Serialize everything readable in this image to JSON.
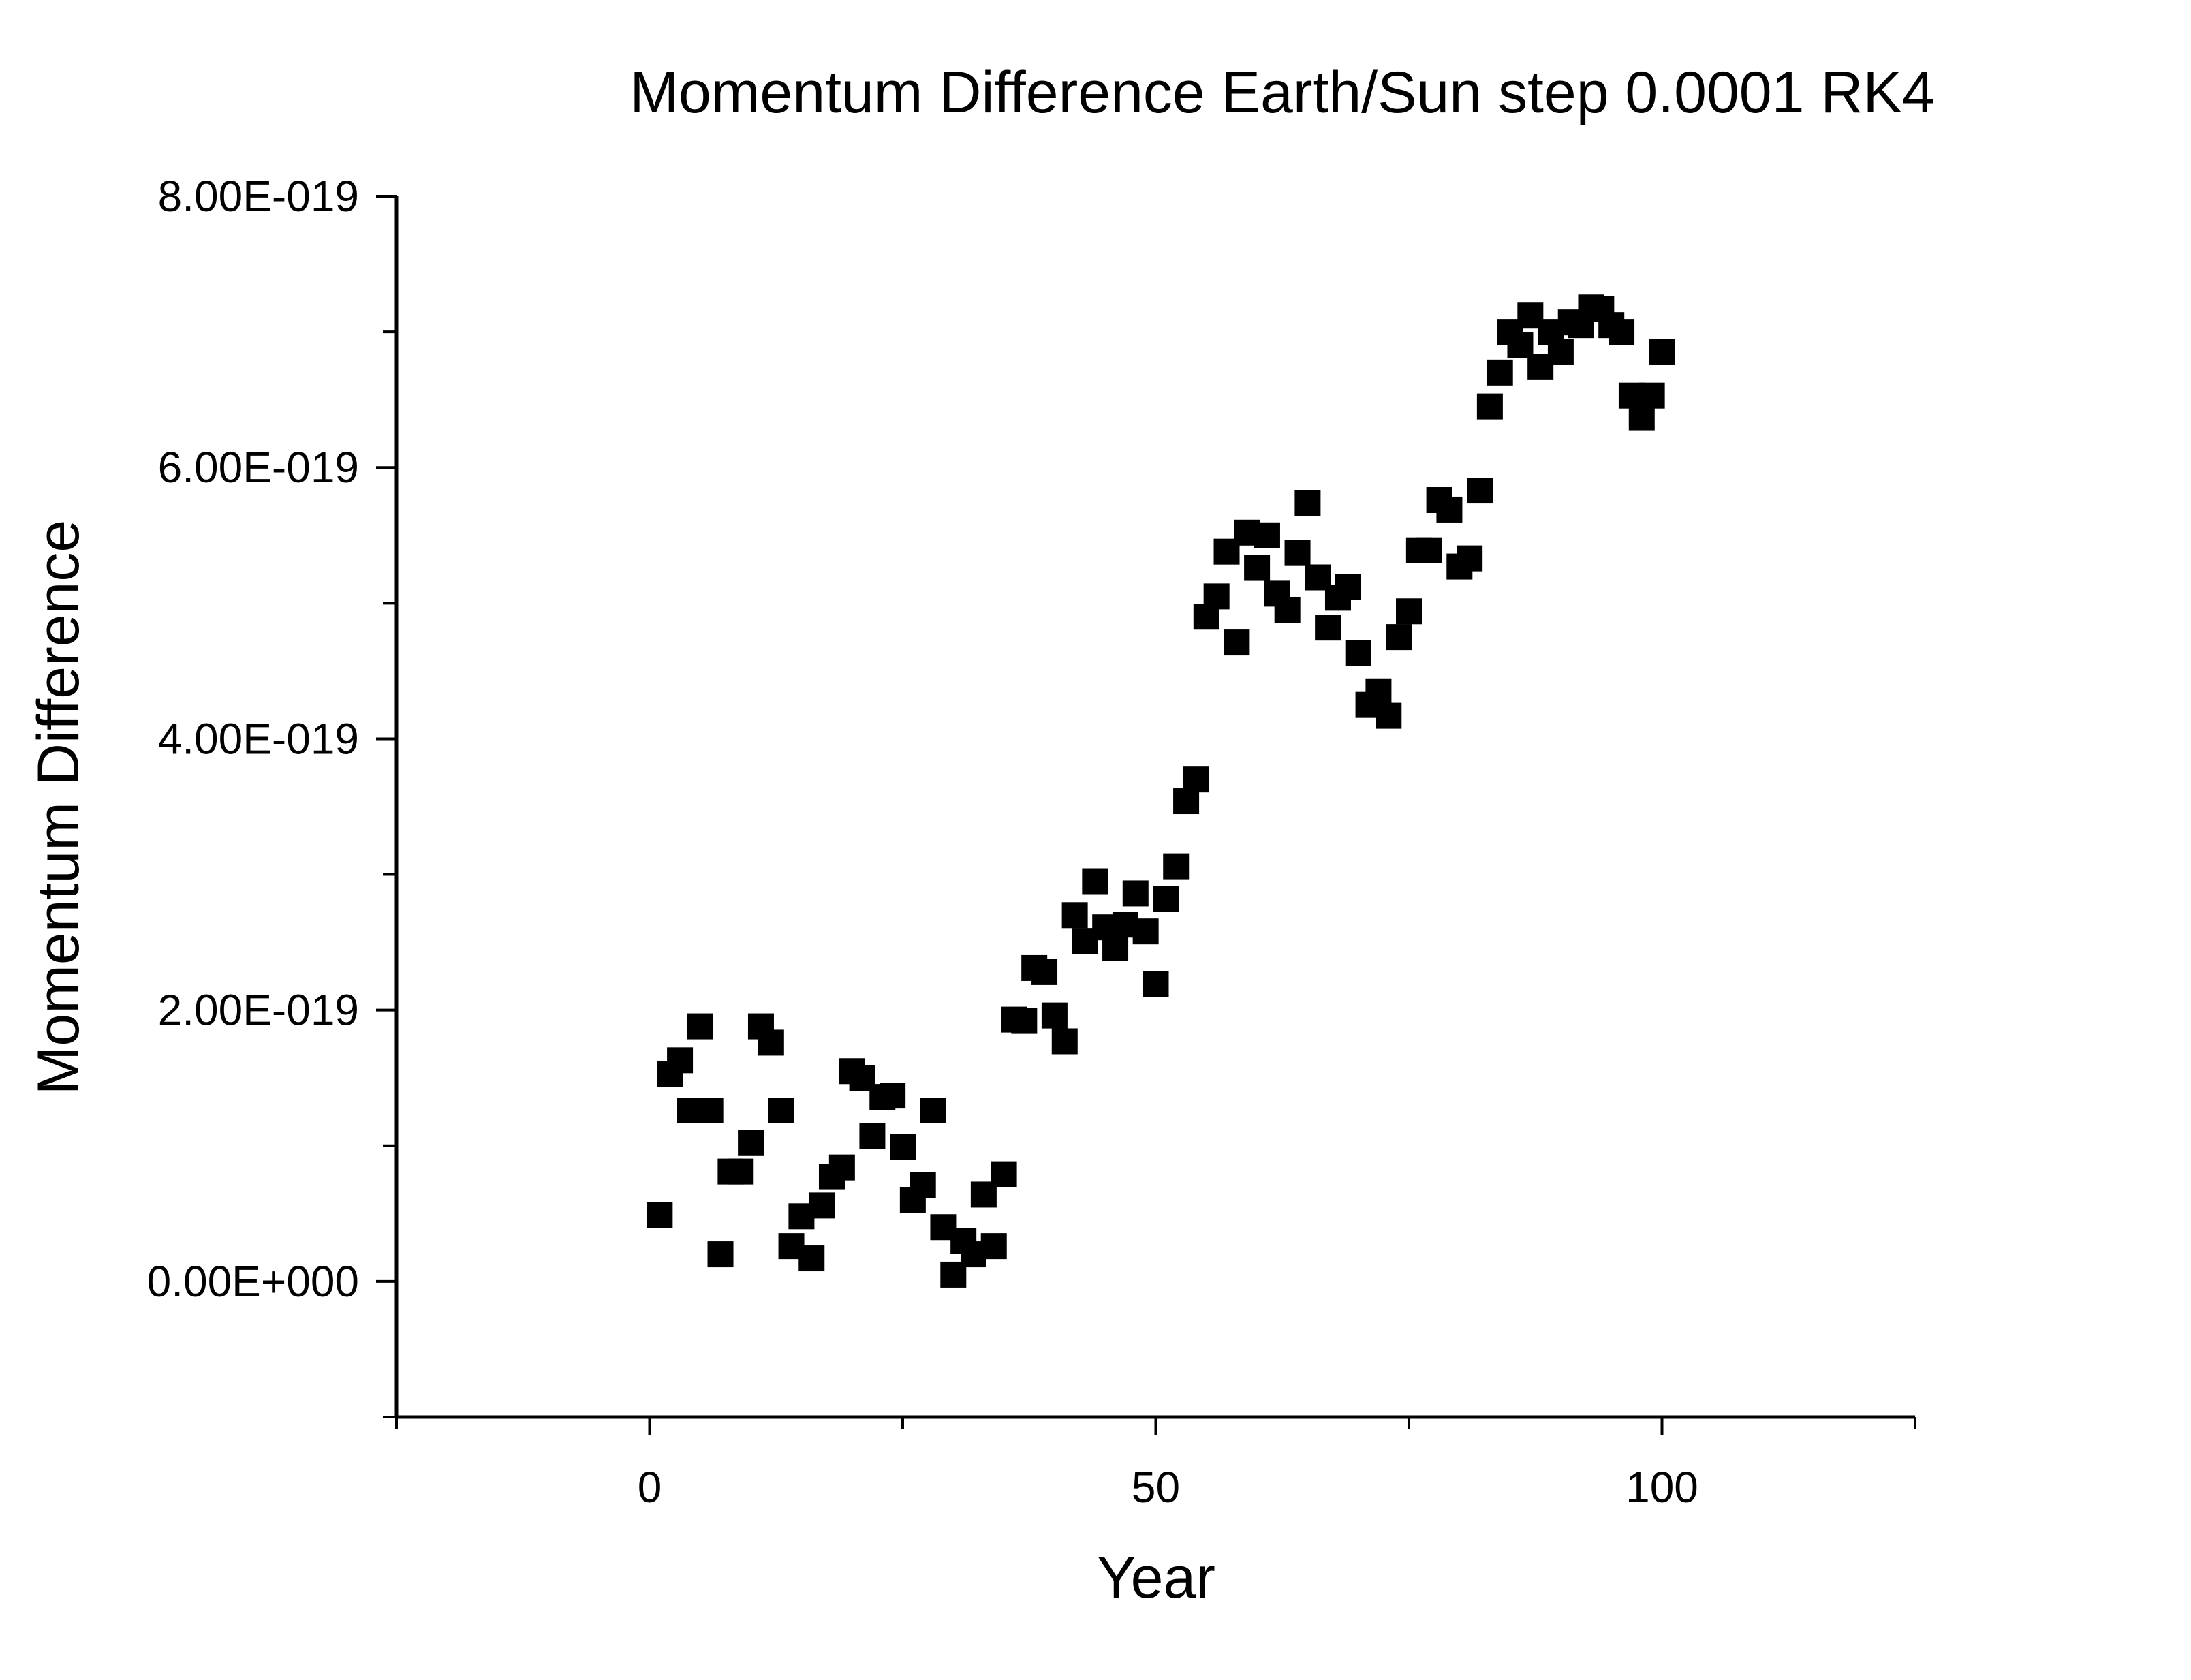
{
  "chart_data": {
    "type": "scatter",
    "title": "Momentum Difference Earth/Sun step 0.0001 RK4",
    "xlabel": "Year",
    "ylabel": "Momentum Difference",
    "xlim": [
      -25,
      125
    ],
    "ylim": [
      -1e-19,
      8e-19
    ],
    "x_ticks": [
      0,
      50,
      100
    ],
    "x_tick_labels": [
      "0",
      "50",
      "100"
    ],
    "y_ticks": [
      0,
      2e-19,
      4e-19,
      6e-19,
      8e-19
    ],
    "y_tick_labels": [
      "0.00E+000",
      "2.00E-019",
      "4.00E-019",
      "6.00E-019",
      "8.00E-019"
    ],
    "grid": false,
    "legend": false,
    "marker": "square",
    "marker_color": "#000000",
    "series": [
      {
        "x": [
          1,
          2,
          3,
          4,
          5,
          6,
          7,
          8,
          9,
          10,
          11,
          12,
          13,
          14,
          15,
          16,
          17,
          18,
          19,
          20,
          21,
          22,
          23,
          24,
          25,
          26,
          27,
          28,
          29,
          30,
          31,
          32,
          33,
          34,
          35,
          36,
          37,
          38,
          39,
          40,
          41,
          42,
          43,
          44,
          45,
          46,
          47,
          48,
          49,
          50,
          51,
          52,
          53,
          54,
          55,
          56,
          57,
          58,
          59,
          60,
          61,
          62,
          63,
          64,
          65,
          66,
          67,
          68,
          69,
          70,
          71,
          72,
          73,
          74,
          75,
          76,
          77,
          78,
          79,
          80,
          81,
          82,
          83,
          84,
          85,
          86,
          87,
          88,
          89,
          90,
          91,
          92,
          93,
          94,
          95,
          96,
          97,
          98,
          99,
          100
        ],
        "y": [
          4.9e-20,
          1.53e-19,
          1.63e-19,
          1.26e-19,
          1.88e-19,
          1.26e-19,
          2e-20,
          8.1e-20,
          8.1e-20,
          1.02e-19,
          1.88e-19,
          1.76e-19,
          1.26e-19,
          2.6e-20,
          4.8e-20,
          1.7e-20,
          5.6e-20,
          7.7e-20,
          8.4e-20,
          1.55e-19,
          1.5e-19,
          1.07e-19,
          1.36e-19,
          1.37e-19,
          9.9e-20,
          6e-20,
          7.1e-20,
          1.26e-19,
          4e-20,
          5e-21,
          3e-20,
          2e-20,
          6.4e-20,
          2.6e-20,
          7.9e-20,
          1.93e-19,
          1.92e-19,
          2.31e-19,
          2.28e-19,
          1.96e-19,
          1.77e-19,
          2.7e-19,
          2.51e-19,
          2.95e-19,
          2.61e-19,
          2.46e-19,
          2.63e-19,
          2.86e-19,
          2.58e-19,
          2.19e-19,
          2.82e-19,
          3.06e-19,
          3.54e-19,
          3.7e-19,
          4.9e-19,
          5.05e-19,
          5.38e-19,
          4.71e-19,
          5.52e-19,
          5.26e-19,
          5.5e-19,
          5.07e-19,
          4.95e-19,
          5.37e-19,
          5.74e-19,
          5.19e-19,
          4.82e-19,
          5.04e-19,
          5.12e-19,
          4.63e-19,
          4.25e-19,
          4.35e-19,
          4.17e-19,
          4.75e-19,
          4.94e-19,
          5.39e-19,
          5.39e-19,
          5.76e-19,
          5.69e-19,
          5.27e-19,
          5.33e-19,
          5.83e-19,
          6.45e-19,
          6.7e-19,
          7e-19,
          6.9e-19,
          7.12e-19,
          6.74e-19,
          7e-19,
          6.85e-19,
          7.07e-19,
          7.05e-19,
          7.18e-19,
          7.17e-19,
          7.05e-19,
          7e-19,
          6.53e-19,
          6.37e-19,
          6.53e-19,
          6.85e-19
        ]
      }
    ]
  }
}
